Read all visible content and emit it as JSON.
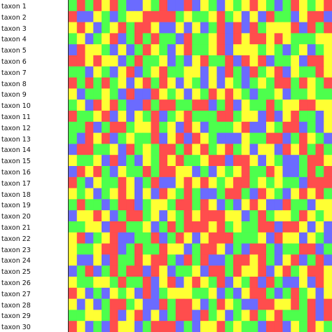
{
  "taxa": [
    "taxon 1",
    "taxon 2",
    "taxon 3",
    "taxon 4",
    "taxon 5",
    "taxon 6",
    "taxon 7",
    "taxon 8",
    "taxon 9",
    "taxon 10",
    "taxon 11",
    "taxon 12",
    "taxon 13",
    "taxon 14",
    "taxon 15",
    "taxon 16",
    "taxon 17",
    "taxon 18",
    "taxon 19",
    "taxon 20",
    "taxon 21",
    "taxon 22",
    "taxon 23",
    "taxon 24",
    "taxon 25",
    "taxon 26",
    "taxon 27",
    "taxon 28",
    "taxon 29",
    "taxon 30"
  ],
  "state_colors": {
    "A": "#6b6bff",
    "C": "#ff4d4d",
    "G": "#ffff33",
    "T": "#4dff4d"
  },
  "matrix_rows": [
    "TCTCGCTAAGTCAACAGTAGTGCGTATCGTGC",
    "CAAGTATGGCCCCTGTTGCTGAGACTTAGCCA",
    "GCGATGCTCCGAAGAGATCACACTGGGCACTC",
    "TGATGCATCTCTTACTTGCACGCCGCGTTTGG",
    "ACGGTAGATCGTAGCTTGCAGGGTGTATGATG",
    "CCGCGGATCTTGATAGCTTCACGCATTGACCG",
    "TTAGTAGCATGCTTGGAGACTACTGCAGTTCG",
    "CTCTCTGAGCTCGAGTAGAGTATGTCCTCGTC",
    "GATTGTACAACGTGAGTCGCGTATTGATTGTT",
    "TGACGCTAACTCCTTCCATCAGTTCTGGCCGG",
    "CTTGCAGAGTCATGCTTTCCTGGACAGCTTAG",
    "TTCATCCTGGCTGACGATTTGCAAGTCCATAG",
    "TACGCATGTTCAGCACGTAAAGTTCCATCGTA",
    "ACCTTGACTGTCCTCGCTGCTGAGGACGCTCT",
    "GTTGACATAGTCGCTTGCCACCGAGTAATCCG",
    "ACGCTAGTTCTCCGGATAGTGCTTCGAATCTC",
    "CTAGTTCGATCAAGCGCGTGCCTGTGTTACCC",
    "GTGATGCGAGACGTCTAATCCTACGTAGCGCT",
    "TCTTATCCATGGTCCTCGATAGCGAACTTAGG",
    "AGGCGATCCTGAGTCGCCCGGATCTGGTCGTG",
    "TTGGACCTTGATCTCCCGCTGTTCCACCGAGA",
    "GCATGCAATTCATCGAGCCCTTTGACGGAGTA",
    "GTTGCCATCTTCGGATCCGATACCTATTCCAT",
    "GAAGACTTCGCCTACTCAATCCGCTAGCATCA",
    "ATCATCTCCACGATTGACCTCGGCAGCTGCCG",
    "GTTGGTCTTCAGCAGCGTCAGTCACTAAGACG",
    "CGATAGTGACATGGGTTGATAGCCTATCTGAG",
    "GAGATCCTGAACTCCGATCGTAACCGGCTCAC",
    "TTGGTCAGCAGATCCACTGATGCTGCTTTCAC",
    "CGATACGGATCCCATAGGCTGTTACCAGTCGT"
  ]
}
